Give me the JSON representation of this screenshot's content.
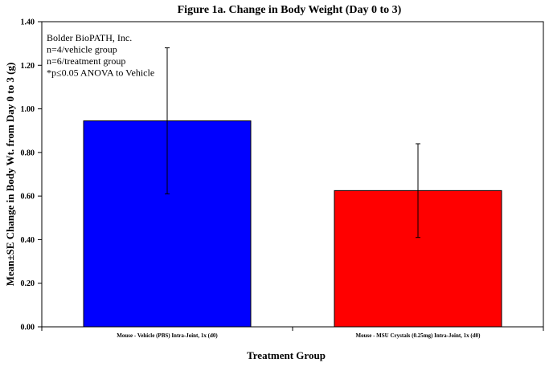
{
  "chart_data": {
    "type": "bar",
    "title": "Figure 1a.  Change in Body Weight (Day 0 to 3)",
    "xlabel": "Treatment Group",
    "ylabel": "Mean±SE Change in Body Wt. from Day 0 to 3 (g)",
    "categories": [
      "Mouse - Vehicle (PBS) Intra-Joint, 1x (d0)",
      "Mouse - MSU Crystals (0.25mg) Intra-Joint, 1x (d0)"
    ],
    "values": [
      0.945,
      0.625
    ],
    "errors": [
      0.335,
      0.215
    ],
    "colors": [
      "#0000ff",
      "#ff0000"
    ],
    "ylim": [
      0,
      1.4
    ],
    "yticks": [
      "0.00",
      "0.20",
      "0.40",
      "0.60",
      "0.80",
      "1.00",
      "1.20",
      "1.40"
    ],
    "grid": false,
    "annotations": [
      "Bolder BioPATH, Inc.",
      "n=4/vehicle group",
      "n=6/treatment group",
      "*p≤0.05 ANOVA to Vehicle"
    ]
  }
}
